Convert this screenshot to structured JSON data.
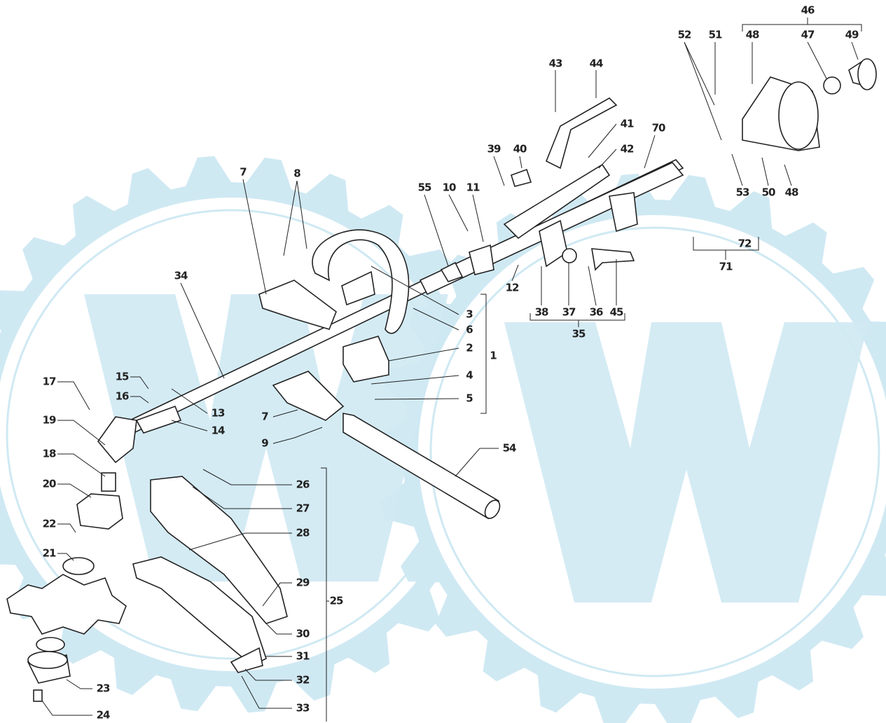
{
  "labels": [
    {
      "text": "46"
    },
    {
      "text": "52"
    },
    {
      "text": "51"
    },
    {
      "text": "48"
    },
    {
      "text": "47"
    },
    {
      "text": "49"
    },
    {
      "text": "43"
    },
    {
      "text": "44"
    },
    {
      "text": "41"
    },
    {
      "text": "70"
    },
    {
      "text": "42"
    },
    {
      "text": "39"
    },
    {
      "text": "40"
    },
    {
      "text": "53"
    },
    {
      "text": "50"
    },
    {
      "text": "48"
    },
    {
      "text": "55"
    },
    {
      "text": "10"
    },
    {
      "text": "11"
    },
    {
      "text": "7"
    },
    {
      "text": "8"
    },
    {
      "text": "34"
    },
    {
      "text": "12"
    },
    {
      "text": "72"
    },
    {
      "text": "71"
    },
    {
      "text": "38"
    },
    {
      "text": "37"
    },
    {
      "text": "36"
    },
    {
      "text": "45"
    },
    {
      "text": "35"
    },
    {
      "text": "3"
    },
    {
      "text": "6"
    },
    {
      "text": "2"
    },
    {
      "text": "1"
    },
    {
      "text": "4"
    },
    {
      "text": "5"
    },
    {
      "text": "15"
    },
    {
      "text": "16"
    },
    {
      "text": "17"
    },
    {
      "text": "13"
    },
    {
      "text": "14"
    },
    {
      "text": "19"
    },
    {
      "text": "7"
    },
    {
      "text": "9"
    },
    {
      "text": "54"
    },
    {
      "text": "18"
    },
    {
      "text": "26"
    },
    {
      "text": "20"
    },
    {
      "text": "27"
    },
    {
      "text": "22"
    },
    {
      "text": "28"
    },
    {
      "text": "21"
    },
    {
      "text": "29"
    },
    {
      "text": "25"
    },
    {
      "text": "30"
    },
    {
      "text": "31"
    },
    {
      "text": "23"
    },
    {
      "text": "32"
    },
    {
      "text": "24"
    },
    {
      "text": "33"
    }
  ]
}
